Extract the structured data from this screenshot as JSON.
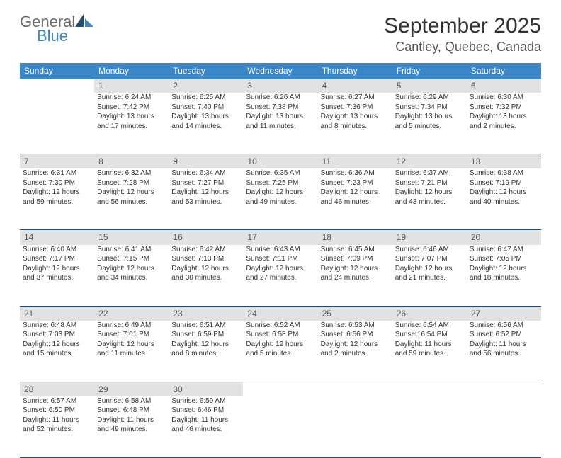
{
  "brand": {
    "name1": "General",
    "name2": "Blue"
  },
  "title": "September 2025",
  "location": "Cantley, Quebec, Canada",
  "dayHeaders": [
    "Sunday",
    "Monday",
    "Tuesday",
    "Wednesday",
    "Thursday",
    "Friday",
    "Saturday"
  ],
  "colors": {
    "headerBg": "#3b86c7",
    "headerText": "#ffffff",
    "dayBg": "#e2e2e2",
    "divider": "#1f4e79",
    "text": "#333333"
  },
  "weeks": [
    [
      {
        "n": "",
        "lines": []
      },
      {
        "n": "1",
        "lines": [
          "Sunrise: 6:24 AM",
          "Sunset: 7:42 PM",
          "Daylight: 13 hours",
          "and 17 minutes."
        ]
      },
      {
        "n": "2",
        "lines": [
          "Sunrise: 6:25 AM",
          "Sunset: 7:40 PM",
          "Daylight: 13 hours",
          "and 14 minutes."
        ]
      },
      {
        "n": "3",
        "lines": [
          "Sunrise: 6:26 AM",
          "Sunset: 7:38 PM",
          "Daylight: 13 hours",
          "and 11 minutes."
        ]
      },
      {
        "n": "4",
        "lines": [
          "Sunrise: 6:27 AM",
          "Sunset: 7:36 PM",
          "Daylight: 13 hours",
          "and 8 minutes."
        ]
      },
      {
        "n": "5",
        "lines": [
          "Sunrise: 6:29 AM",
          "Sunset: 7:34 PM",
          "Daylight: 13 hours",
          "and 5 minutes."
        ]
      },
      {
        "n": "6",
        "lines": [
          "Sunrise: 6:30 AM",
          "Sunset: 7:32 PM",
          "Daylight: 13 hours",
          "and 2 minutes."
        ]
      }
    ],
    [
      {
        "n": "7",
        "lines": [
          "Sunrise: 6:31 AM",
          "Sunset: 7:30 PM",
          "Daylight: 12 hours",
          "and 59 minutes."
        ]
      },
      {
        "n": "8",
        "lines": [
          "Sunrise: 6:32 AM",
          "Sunset: 7:28 PM",
          "Daylight: 12 hours",
          "and 56 minutes."
        ]
      },
      {
        "n": "9",
        "lines": [
          "Sunrise: 6:34 AM",
          "Sunset: 7:27 PM",
          "Daylight: 12 hours",
          "and 53 minutes."
        ]
      },
      {
        "n": "10",
        "lines": [
          "Sunrise: 6:35 AM",
          "Sunset: 7:25 PM",
          "Daylight: 12 hours",
          "and 49 minutes."
        ]
      },
      {
        "n": "11",
        "lines": [
          "Sunrise: 6:36 AM",
          "Sunset: 7:23 PM",
          "Daylight: 12 hours",
          "and 46 minutes."
        ]
      },
      {
        "n": "12",
        "lines": [
          "Sunrise: 6:37 AM",
          "Sunset: 7:21 PM",
          "Daylight: 12 hours",
          "and 43 minutes."
        ]
      },
      {
        "n": "13",
        "lines": [
          "Sunrise: 6:38 AM",
          "Sunset: 7:19 PM",
          "Daylight: 12 hours",
          "and 40 minutes."
        ]
      }
    ],
    [
      {
        "n": "14",
        "lines": [
          "Sunrise: 6:40 AM",
          "Sunset: 7:17 PM",
          "Daylight: 12 hours",
          "and 37 minutes."
        ]
      },
      {
        "n": "15",
        "lines": [
          "Sunrise: 6:41 AM",
          "Sunset: 7:15 PM",
          "Daylight: 12 hours",
          "and 34 minutes."
        ]
      },
      {
        "n": "16",
        "lines": [
          "Sunrise: 6:42 AM",
          "Sunset: 7:13 PM",
          "Daylight: 12 hours",
          "and 30 minutes."
        ]
      },
      {
        "n": "17",
        "lines": [
          "Sunrise: 6:43 AM",
          "Sunset: 7:11 PM",
          "Daylight: 12 hours",
          "and 27 minutes."
        ]
      },
      {
        "n": "18",
        "lines": [
          "Sunrise: 6:45 AM",
          "Sunset: 7:09 PM",
          "Daylight: 12 hours",
          "and 24 minutes."
        ]
      },
      {
        "n": "19",
        "lines": [
          "Sunrise: 6:46 AM",
          "Sunset: 7:07 PM",
          "Daylight: 12 hours",
          "and 21 minutes."
        ]
      },
      {
        "n": "20",
        "lines": [
          "Sunrise: 6:47 AM",
          "Sunset: 7:05 PM",
          "Daylight: 12 hours",
          "and 18 minutes."
        ]
      }
    ],
    [
      {
        "n": "21",
        "lines": [
          "Sunrise: 6:48 AM",
          "Sunset: 7:03 PM",
          "Daylight: 12 hours",
          "and 15 minutes."
        ]
      },
      {
        "n": "22",
        "lines": [
          "Sunrise: 6:49 AM",
          "Sunset: 7:01 PM",
          "Daylight: 12 hours",
          "and 11 minutes."
        ]
      },
      {
        "n": "23",
        "lines": [
          "Sunrise: 6:51 AM",
          "Sunset: 6:59 PM",
          "Daylight: 12 hours",
          "and 8 minutes."
        ]
      },
      {
        "n": "24",
        "lines": [
          "Sunrise: 6:52 AM",
          "Sunset: 6:58 PM",
          "Daylight: 12 hours",
          "and 5 minutes."
        ]
      },
      {
        "n": "25",
        "lines": [
          "Sunrise: 6:53 AM",
          "Sunset: 6:56 PM",
          "Daylight: 12 hours",
          "and 2 minutes."
        ]
      },
      {
        "n": "26",
        "lines": [
          "Sunrise: 6:54 AM",
          "Sunset: 6:54 PM",
          "Daylight: 11 hours",
          "and 59 minutes."
        ]
      },
      {
        "n": "27",
        "lines": [
          "Sunrise: 6:56 AM",
          "Sunset: 6:52 PM",
          "Daylight: 11 hours",
          "and 56 minutes."
        ]
      }
    ],
    [
      {
        "n": "28",
        "lines": [
          "Sunrise: 6:57 AM",
          "Sunset: 6:50 PM",
          "Daylight: 11 hours",
          "and 52 minutes."
        ]
      },
      {
        "n": "29",
        "lines": [
          "Sunrise: 6:58 AM",
          "Sunset: 6:48 PM",
          "Daylight: 11 hours",
          "and 49 minutes."
        ]
      },
      {
        "n": "30",
        "lines": [
          "Sunrise: 6:59 AM",
          "Sunset: 6:46 PM",
          "Daylight: 11 hours",
          "and 46 minutes."
        ]
      },
      {
        "n": "",
        "lines": []
      },
      {
        "n": "",
        "lines": []
      },
      {
        "n": "",
        "lines": []
      },
      {
        "n": "",
        "lines": []
      }
    ]
  ]
}
